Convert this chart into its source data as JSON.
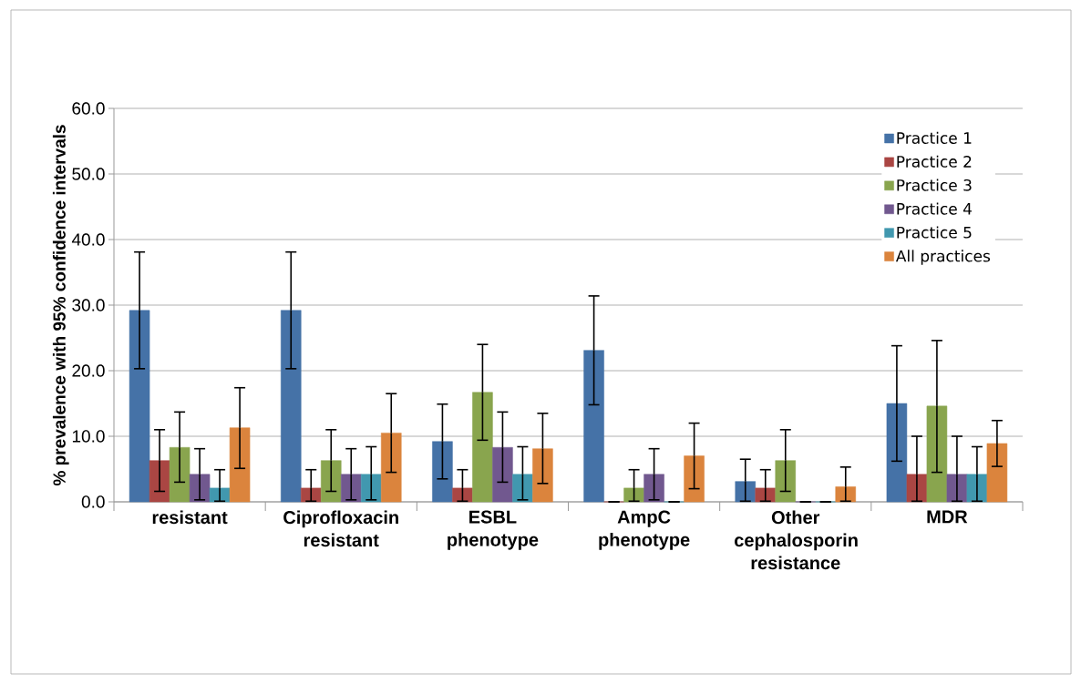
{
  "chart_data": {
    "type": "bar",
    "ylabel": "% prevalence with 95% confidence intervals",
    "categories": [
      "resistant",
      "Ciprofloxacin resistant",
      "ESBL phenotype",
      "AmpC phenotype",
      "Other cephalosporin resistance",
      "MDR"
    ],
    "series": [
      {
        "name": "Practice 1",
        "color": "#4572a7",
        "values": [
          29.2,
          29.2,
          9.2,
          23.1,
          3.1,
          15.0
        ],
        "errors": [
          [
            20.3,
            38.1
          ],
          [
            20.3,
            38.1
          ],
          [
            3.5,
            14.9
          ],
          [
            14.8,
            31.4
          ],
          [
            0.1,
            6.5
          ],
          [
            6.2,
            23.8
          ]
        ]
      },
      {
        "name": "Practice 2",
        "color": "#aa4643",
        "values": [
          6.3,
          2.1,
          2.1,
          0,
          2.1,
          4.2
        ],
        "errors": [
          [
            1.6,
            11.0
          ],
          [
            0.1,
            4.9
          ],
          [
            0.1,
            4.9
          ],
          null,
          [
            0.1,
            4.9
          ],
          [
            0.1,
            10.0
          ]
        ]
      },
      {
        "name": "Practice 3",
        "color": "#89a54e",
        "values": [
          8.3,
          6.3,
          16.7,
          2.1,
          6.3,
          14.6
        ],
        "errors": [
          [
            3.0,
            13.7
          ],
          [
            1.6,
            11.0
          ],
          [
            9.4,
            24.0
          ],
          [
            0.1,
            4.9
          ],
          [
            1.6,
            11.0
          ],
          [
            4.5,
            24.6
          ]
        ]
      },
      {
        "name": "Practice 4",
        "color": "#71588f",
        "values": [
          4.2,
          4.2,
          8.3,
          4.2,
          0,
          4.2
        ],
        "errors": [
          [
            0.3,
            8.1
          ],
          [
            0.3,
            8.1
          ],
          [
            3.0,
            13.7
          ],
          [
            0.3,
            8.1
          ],
          null,
          [
            0.1,
            10.0
          ]
        ]
      },
      {
        "name": "Practice 5",
        "color": "#4198af",
        "values": [
          2.1,
          4.2,
          4.2,
          0,
          0,
          4.2
        ],
        "errors": [
          [
            0.1,
            4.9
          ],
          [
            0.3,
            8.4
          ],
          [
            0.3,
            8.4
          ],
          null,
          null,
          [
            0.1,
            8.4
          ]
        ]
      },
      {
        "name": "All practices",
        "color": "#db843d",
        "values": [
          11.3,
          10.5,
          8.1,
          7.0,
          2.3,
          8.9
        ],
        "errors": [
          [
            5.1,
            17.4
          ],
          [
            4.5,
            16.5
          ],
          [
            2.8,
            13.5
          ],
          [
            2.0,
            12.0
          ],
          [
            0.1,
            5.3
          ],
          [
            5.4,
            12.4
          ]
        ]
      }
    ],
    "ylim": [
      0,
      60
    ],
    "yticks": [
      {
        "value": 0,
        "label": "0.0"
      },
      {
        "value": 10,
        "label": "10.0"
      },
      {
        "value": 20,
        "label": "20.0"
      },
      {
        "value": 30,
        "label": "30.0"
      },
      {
        "value": 40,
        "label": "40.0"
      },
      {
        "value": 50,
        "label": "50.0"
      },
      {
        "value": 60,
        "label": "60.0"
      }
    ],
    "grid": "y",
    "legend": "top right"
  }
}
